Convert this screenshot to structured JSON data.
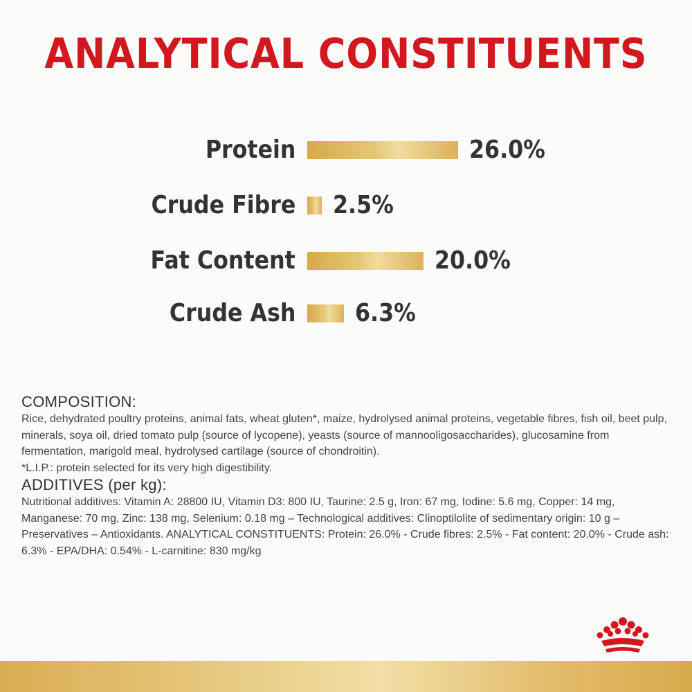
{
  "title": "ANALYTICAL CONSTITUENTS",
  "chart_data": {
    "type": "bar",
    "categories": [
      "Protein",
      "Crude Fibre",
      "Fat Content",
      "Crude Ash"
    ],
    "values": [
      26.0,
      2.5,
      20.0,
      6.3
    ],
    "value_labels": [
      "26.0%",
      "2.5%",
      "20.0%",
      "6.3%"
    ],
    "bar_color": "#dcb159"
  },
  "composition": {
    "heading": "COMPOSITION:",
    "text": "Rice, dehydrated poultry proteins, animal fats, wheat gluten*, maize, hydrolysed animal proteins, vegetable fibres, fish oil, beet pulp, minerals, soya oil, dried tomato pulp (source of lycopene), yeasts (source of mannooligosaccharides), glucosamine from fermentation, marigold meal, hydrolysed cartilage (source of chondroitin).",
    "note": "*L.I.P.: protein selected for its very high digestibility."
  },
  "additives": {
    "heading": "ADDITIVES (per kg):",
    "text": "Nutritional additives: Vitamin A: 28800 IU, Vitamin D3: 800 IU, Taurine: 2.5 g, Iron: 67 mg, Iodine: 5.6 mg, Copper: 14 mg, Manganese: 70 mg, Zinc: 138 mg, Selenium: 0.18 mg – Technological additives: Clinoptilolite of sedimentary origin: 10 g – Preservatives – Antioxidants. ANALYTICAL CONSTITUENTS: Protein: 26.0% - Crude fibres: 2.5% - Fat content: 20.0% - Crude ash: 6.3% - EPA/DHA: 0.54% - L-carnitine: 830 mg/kg"
  },
  "brand": {
    "logo_icon": "crown-icon",
    "accent_color": "#d2171e",
    "gold_color": "#dcb159"
  }
}
